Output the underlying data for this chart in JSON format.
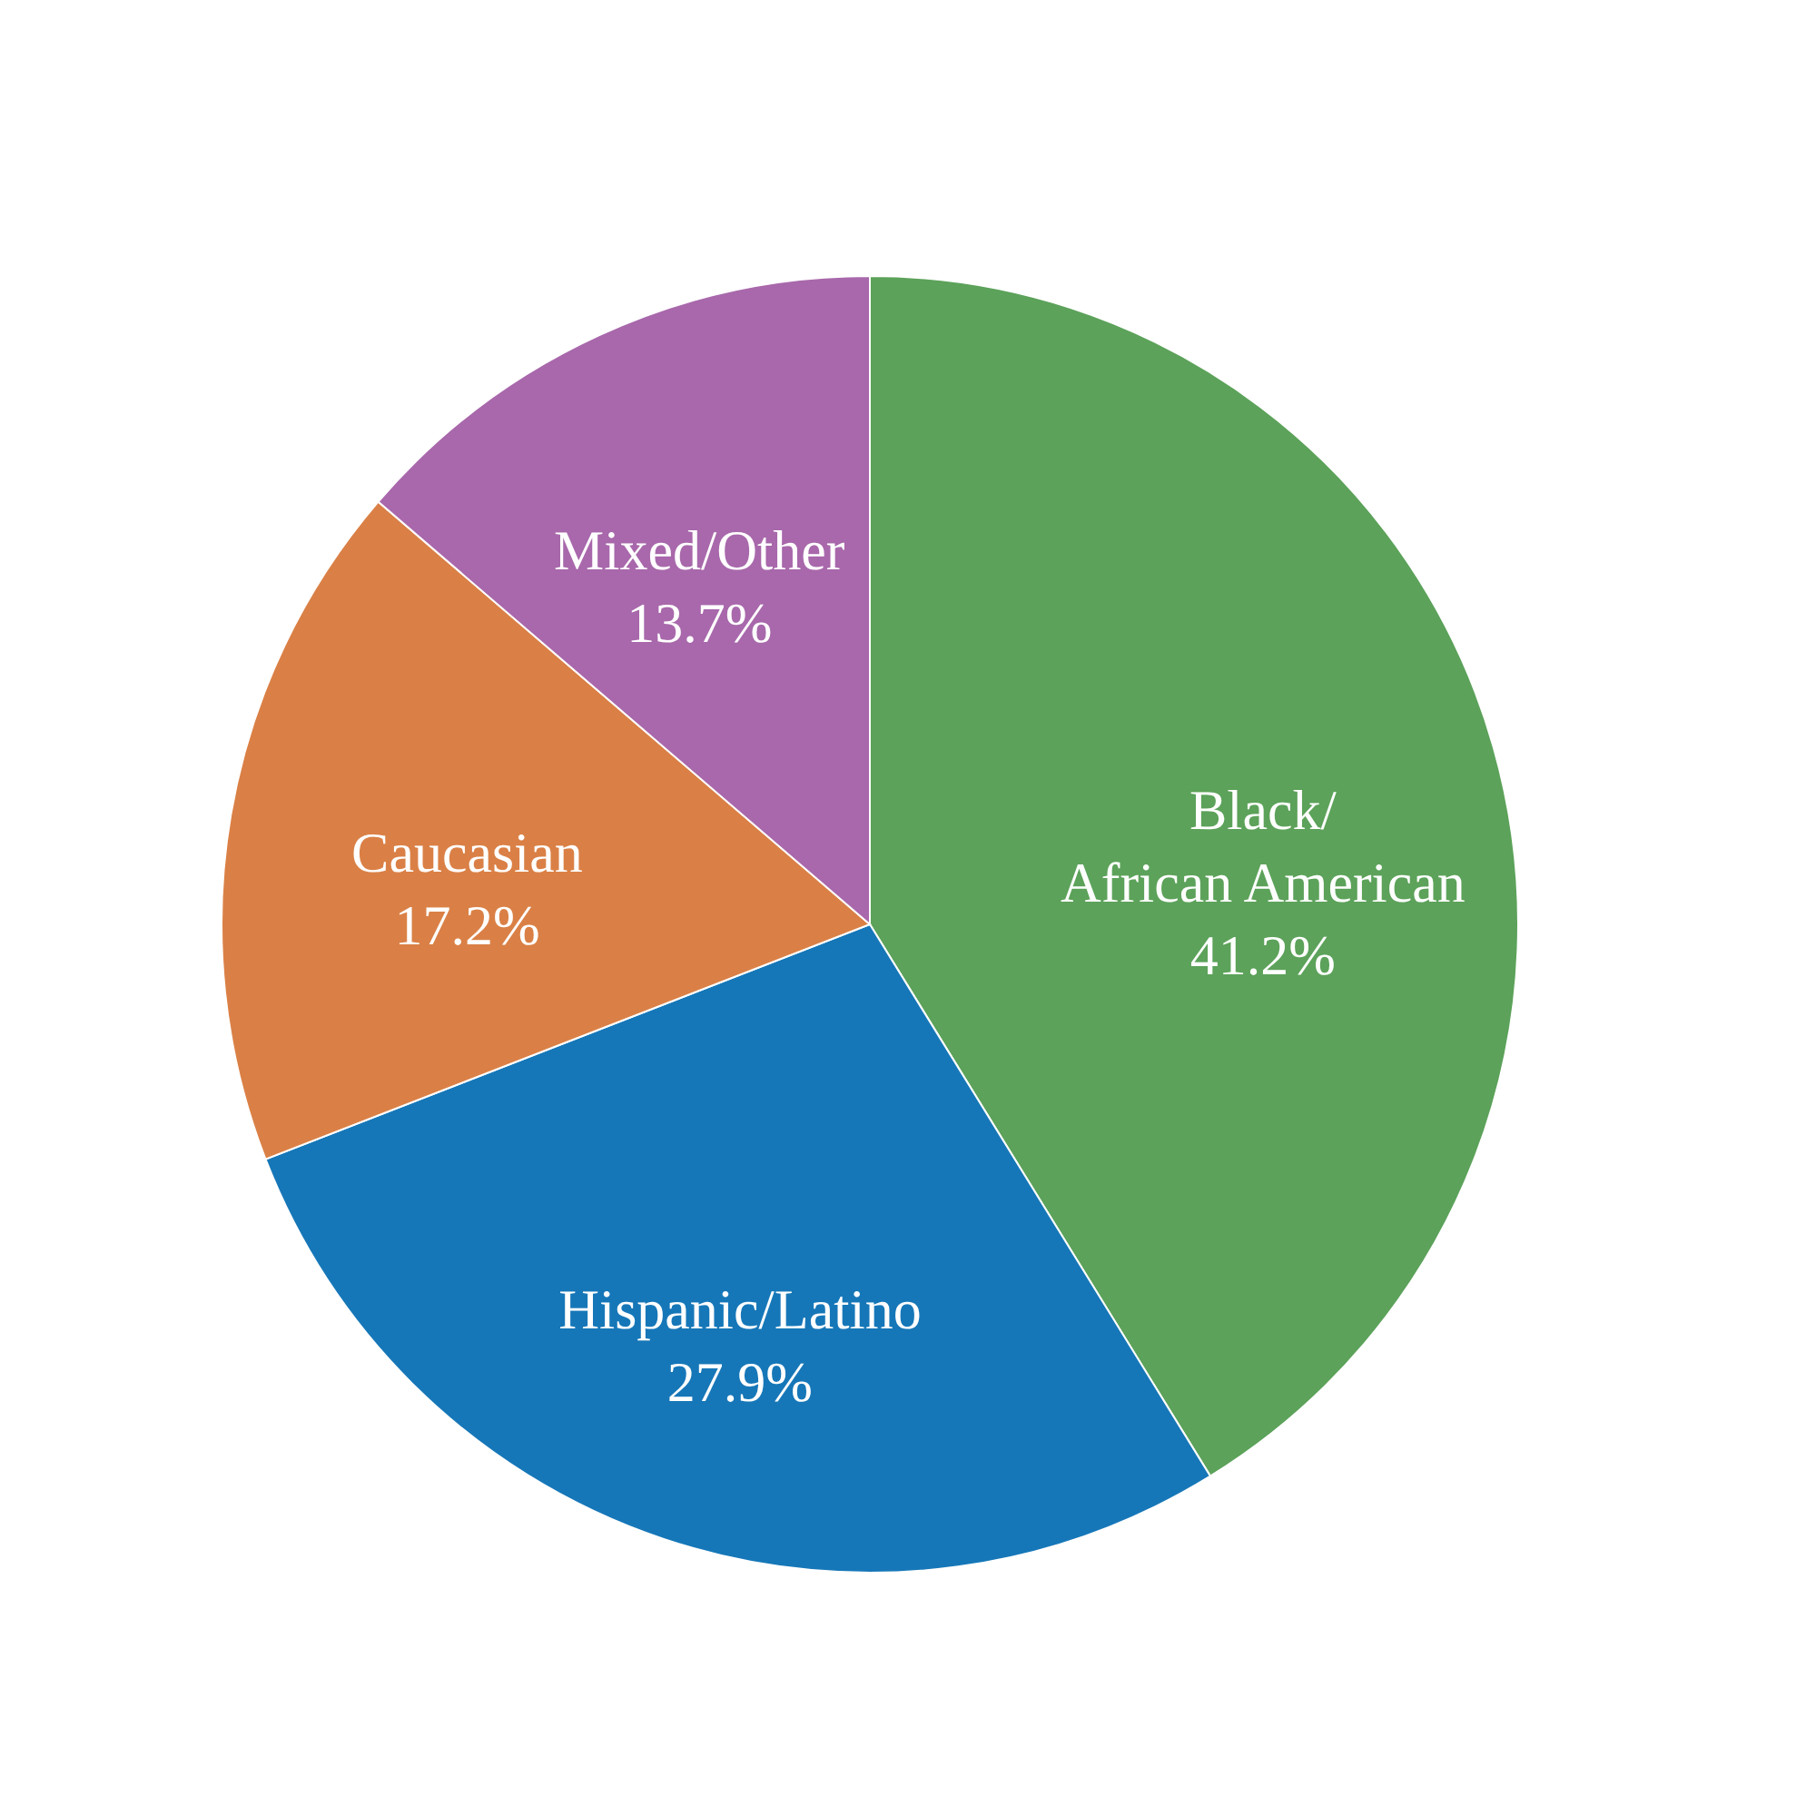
{
  "chart_data": {
    "type": "pie",
    "categories": [
      "Black/\nAfrican American",
      "Hispanic/Latino",
      "Caucasian",
      "Mixed/Other"
    ],
    "values": [
      41.2,
      27.9,
      17.2,
      13.7
    ],
    "value_labels": [
      "41.2%",
      "27.9%",
      "17.2%",
      "13.7%"
    ],
    "colors": [
      "#5ca25a",
      "#1677b8",
      "#da8046",
      "#a868ab"
    ]
  }
}
